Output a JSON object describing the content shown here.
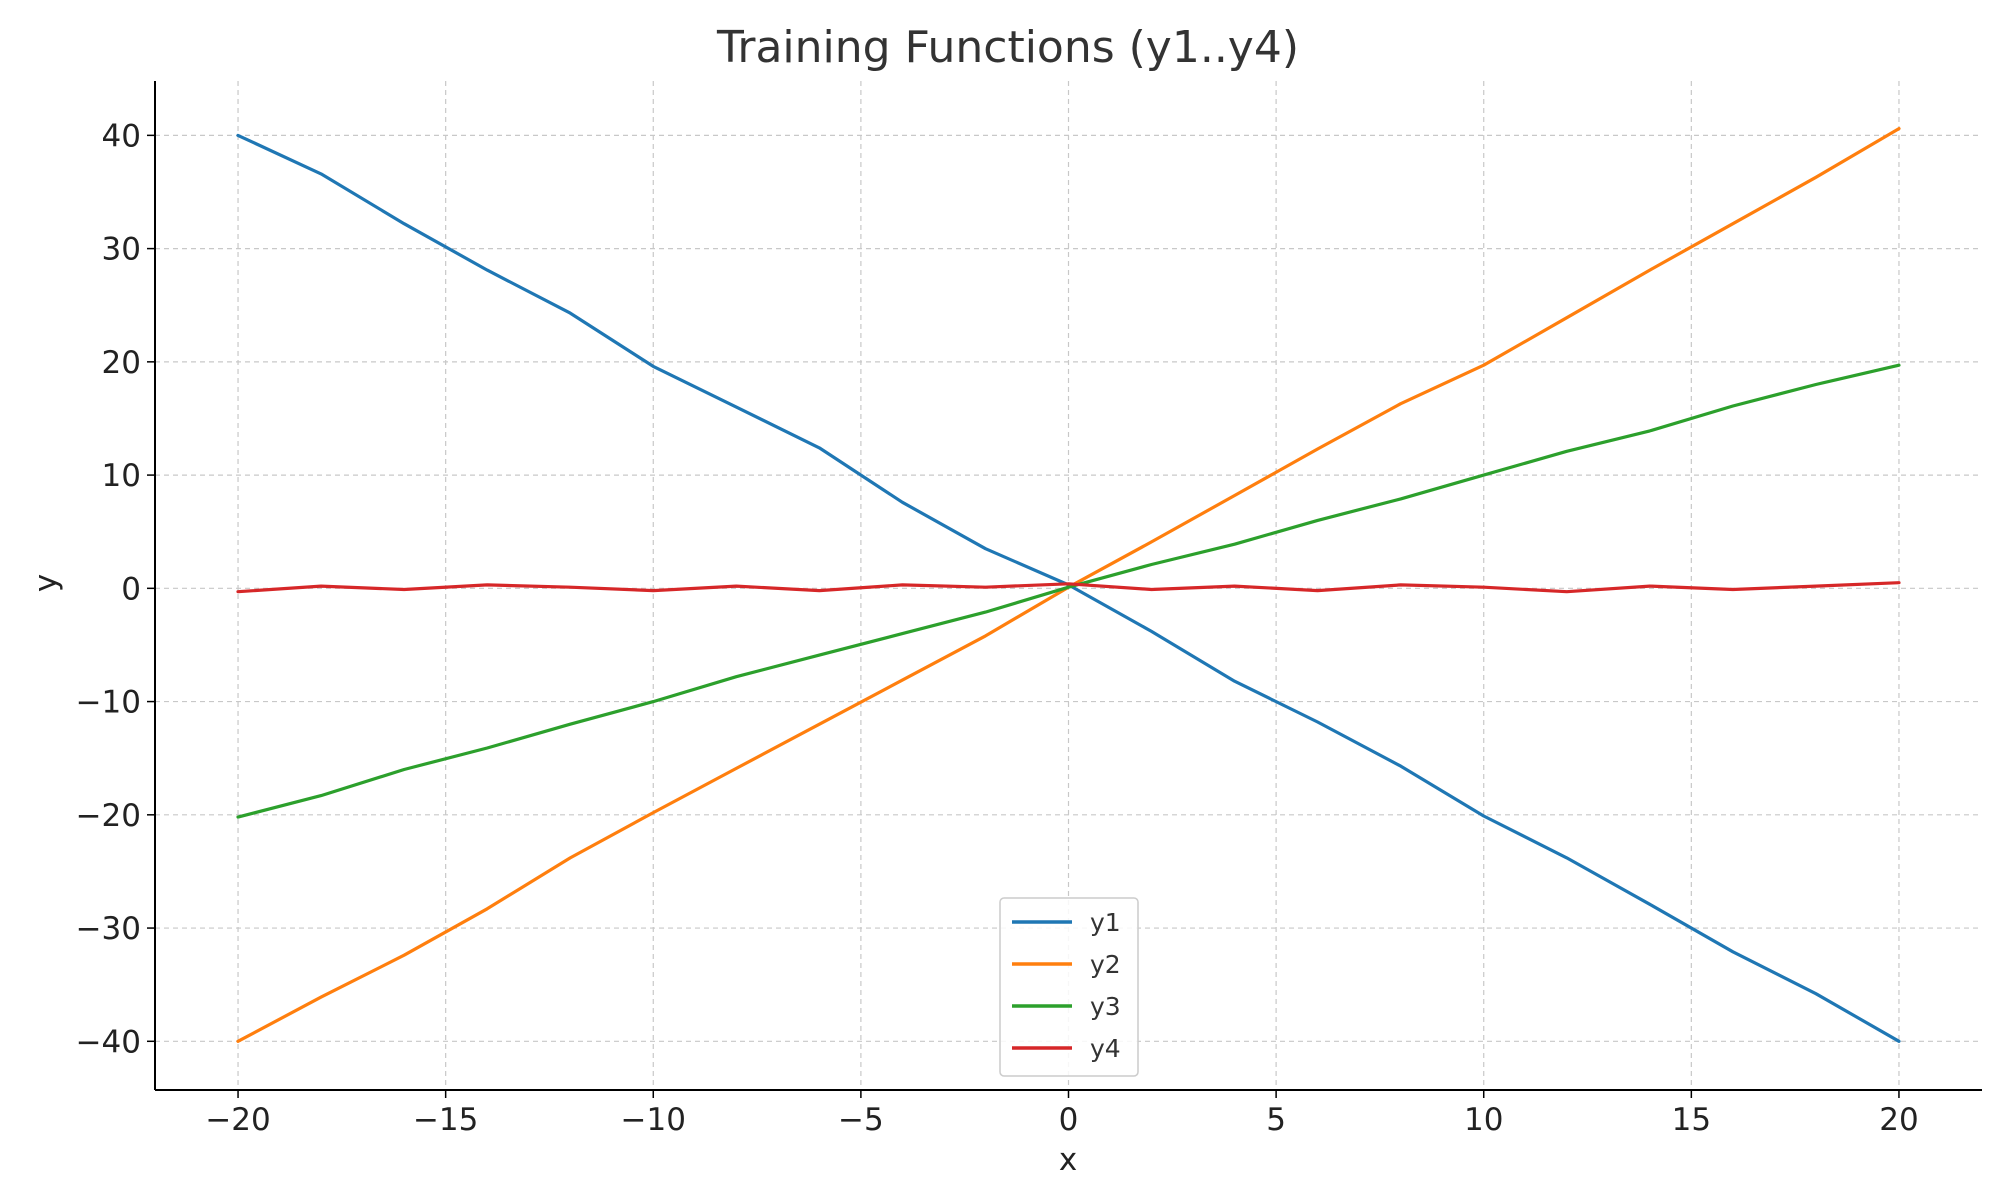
{
  "chart_data": {
    "type": "line",
    "title": "Training Functions (y1..y4)",
    "xlabel": "x",
    "ylabel": "y",
    "xlim": [
      -22,
      22
    ],
    "ylim": [
      -44.3,
      44.8
    ],
    "xticks": [
      -20,
      -15,
      -10,
      -5,
      0,
      5,
      10,
      15,
      20
    ],
    "yticks": [
      -40,
      -30,
      -20,
      -10,
      0,
      10,
      20,
      30,
      40
    ],
    "xtick_labels": [
      "−20",
      "−15",
      "−10",
      "−5",
      "0",
      "5",
      "10",
      "15",
      "20"
    ],
    "ytick_labels": [
      "−40",
      "−30",
      "−20",
      "−10",
      "0",
      "10",
      "20",
      "30",
      "40"
    ],
    "grid": true,
    "legend_position": "bottom-center",
    "x": [
      -20,
      -18,
      -16,
      -14,
      -12,
      -10,
      -8,
      -6,
      -4,
      -2,
      0,
      2,
      4,
      6,
      8,
      10,
      12,
      14,
      16,
      18,
      20
    ],
    "series": [
      {
        "name": "y1",
        "color": "#1f77b4",
        "values": [
          40,
          36.6,
          32.2,
          28.1,
          24.3,
          19.6,
          16.0,
          12.4,
          7.6,
          3.5,
          0.3,
          -3.8,
          -8.2,
          -11.8,
          -15.7,
          -20.1,
          -23.8,
          -27.9,
          -32.1,
          -35.8,
          -40
        ]
      },
      {
        "name": "y2",
        "color": "#ff7f0e",
        "values": [
          -40,
          -36.1,
          -32.4,
          -28.3,
          -23.8,
          -19.8,
          -15.9,
          -12.0,
          -8.1,
          -4.2,
          0.1,
          4.1,
          8.2,
          12.3,
          16.3,
          19.7,
          23.9,
          28.1,
          32.2,
          36.3,
          40.6
        ]
      },
      {
        "name": "y3",
        "color": "#2ca02c",
        "values": [
          -20.2,
          -18.3,
          -16.0,
          -14.1,
          -12.0,
          -10.0,
          -7.8,
          -5.9,
          -4.0,
          -2.1,
          0.1,
          2.1,
          3.9,
          6.0,
          7.9,
          10.0,
          12.1,
          13.9,
          16.1,
          18.0,
          19.7
        ]
      },
      {
        "name": "y4",
        "color": "#d62728",
        "values": [
          -0.3,
          0.2,
          -0.1,
          0.3,
          0.1,
          -0.2,
          0.2,
          -0.2,
          0.3,
          0.1,
          0.4,
          -0.1,
          0.2,
          -0.2,
          0.3,
          0.1,
          -0.3,
          0.2,
          -0.1,
          0.2,
          0.5
        ]
      }
    ]
  }
}
